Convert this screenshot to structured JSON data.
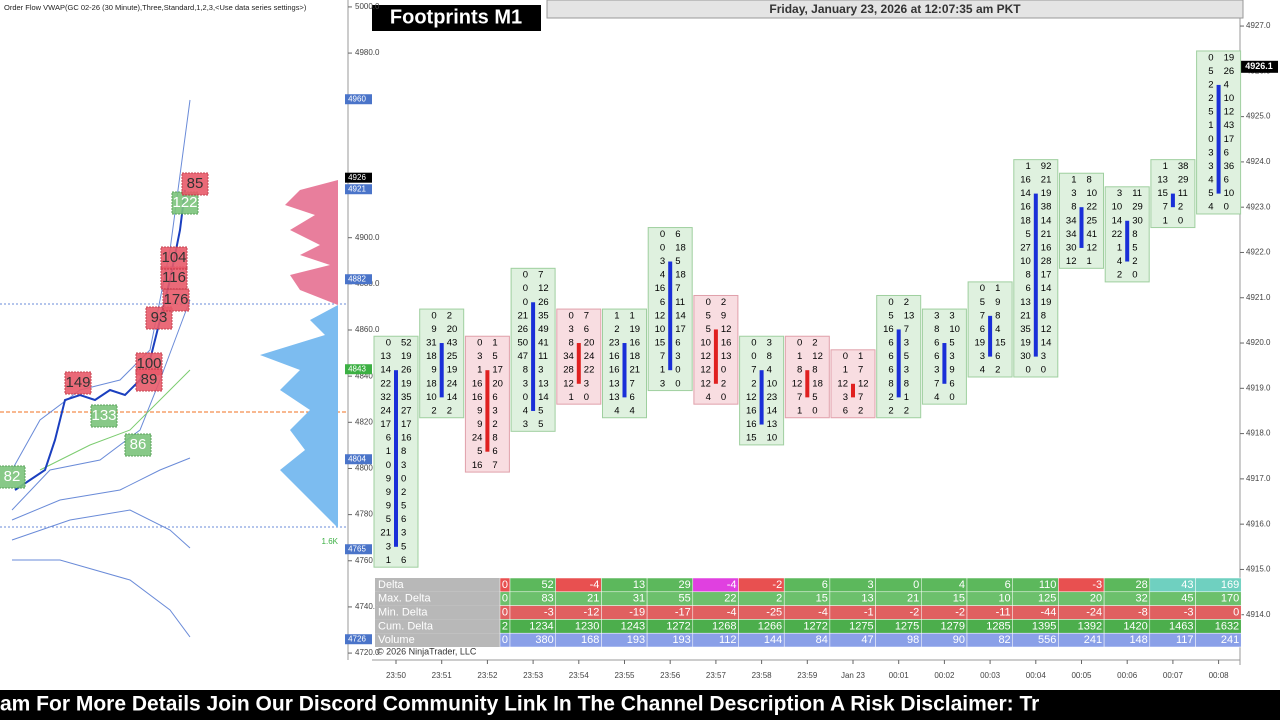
{
  "header": {
    "indicator": "Order Flow VWAP(GC 02-26 (30 Minute),Three,Standard,1,2,3,<Use data series settings>)",
    "title": "Footprints M1",
    "datetime": "Friday, January 23, 2026 at 12:07:35 am PKT",
    "copyright": "© 2026 NinjaTrader, LLC"
  },
  "left_chart": {
    "ylim": [
      4717,
      5003
    ],
    "yticks": [
      {
        "value": 5000,
        "label": "5000.0"
      },
      {
        "value": 4980,
        "label": "4980.0"
      },
      {
        "value": 4900,
        "label": "4900.0"
      },
      {
        "value": 4880,
        "label": "4880.0"
      },
      {
        "value": 4860,
        "label": "4860.0"
      },
      {
        "value": 4840,
        "label": "4840.0"
      },
      {
        "value": 4820,
        "label": "4820.0"
      },
      {
        "value": 4800,
        "label": "4800.0"
      },
      {
        "value": 4780,
        "label": "4780.0"
      },
      {
        "value": 4760,
        "label": "4760.0"
      },
      {
        "value": 4740,
        "label": "4740.0"
      },
      {
        "value": 4720,
        "label": "4720.0"
      }
    ],
    "price_tags": [
      {
        "value": 4960,
        "color": "#4a74c9"
      },
      {
        "value": 4926,
        "color": "#000000"
      },
      {
        "value": 4921,
        "color": "#4a74c9"
      },
      {
        "value": 4882,
        "color": "#4a74c9"
      },
      {
        "value": 4843,
        "color": "#3cb043"
      },
      {
        "value": 4804,
        "color": "#4a74c9"
      },
      {
        "value": 4765,
        "color": "#4a74c9"
      },
      {
        "value": 4726,
        "color": "#4a74c9"
      }
    ],
    "profile_label": "1.6K",
    "boxes": [
      {
        "label": "82",
        "color": "green"
      },
      {
        "label": "149",
        "color": "red"
      },
      {
        "label": "133",
        "color": "green"
      },
      {
        "label": "86",
        "color": "green"
      },
      {
        "label": "100",
        "color": "red"
      },
      {
        "label": "89",
        "color": "red"
      },
      {
        "label": "93",
        "color": "red"
      },
      {
        "label": "176",
        "color": "red"
      },
      {
        "label": "116",
        "color": "red"
      },
      {
        "label": "104",
        "color": "red"
      },
      {
        "label": "122",
        "color": "green"
      },
      {
        "label": "85",
        "color": "red"
      }
    ]
  },
  "right_chart": {
    "ylim": [
      4913,
      4927.2
    ],
    "yticks": [
      {
        "value": 4927,
        "label": "4927.0"
      },
      {
        "value": 4926,
        "label": "4926.0"
      },
      {
        "value": 4925,
        "label": "4925.0"
      },
      {
        "value": 4924,
        "label": "4924.0"
      },
      {
        "value": 4923,
        "label": "4923.0"
      },
      {
        "value": 4922,
        "label": "4922.0"
      },
      {
        "value": 4921,
        "label": "4921.0"
      },
      {
        "value": 4920,
        "label": "4920.0"
      },
      {
        "value": 4919,
        "label": "4919.0"
      },
      {
        "value": 4918,
        "label": "4918.0"
      },
      {
        "value": 4917,
        "label": "4917.0"
      },
      {
        "value": 4916,
        "label": "4916.0"
      },
      {
        "value": 4915,
        "label": "4915.0"
      },
      {
        "value": 4914,
        "label": "4914.0"
      }
    ],
    "last_price": {
      "value": 4926.1,
      "label": "4926.1"
    },
    "row_size": 0.3,
    "times": [
      "23:50",
      "23:51",
      "23:52",
      "23:53",
      "23:54",
      "23:55",
      "23:56",
      "23:57",
      "23:58",
      "23:59",
      "Jan 23",
      "00:01",
      "00:02",
      "00:03",
      "00:04",
      "00:05",
      "00:06",
      "00:07",
      "00:08"
    ],
    "columns": [
      {
        "top_price": 4920.0,
        "color": "blue",
        "rows": [
          [
            0,
            52
          ],
          [
            13,
            19
          ],
          [
            14,
            26
          ],
          [
            22,
            19
          ],
          [
            32,
            35
          ],
          [
            24,
            27
          ],
          [
            17,
            17
          ],
          [
            6,
            16
          ],
          [
            1,
            8
          ],
          [
            0,
            3
          ],
          [
            9,
            0
          ],
          [
            9,
            2
          ],
          [
            9,
            5
          ],
          [
            5,
            6
          ],
          [
            21,
            3
          ],
          [
            3,
            5
          ],
          [
            1,
            6
          ]
        ]
      },
      {
        "top_price": 4920.6,
        "color": "blue",
        "rows": [
          [
            0,
            2
          ],
          [
            9,
            20
          ],
          [
            31,
            43
          ],
          [
            18,
            25
          ],
          [
            9,
            19
          ],
          [
            18,
            24
          ],
          [
            10,
            14
          ],
          [
            2,
            2
          ]
        ]
      },
      {
        "top_price": 4920.0,
        "color": "red",
        "rows": [
          [
            0,
            1
          ],
          [
            3,
            5
          ],
          [
            1,
            17
          ],
          [
            16,
            20
          ],
          [
            16,
            6
          ],
          [
            9,
            3
          ],
          [
            9,
            2
          ],
          [
            24,
            8
          ],
          [
            5,
            6
          ],
          [
            16,
            7
          ]
        ]
      },
      {
        "top_price": 4921.5,
        "color": "blue",
        "rows": [
          [
            0,
            7
          ],
          [
            0,
            12
          ],
          [
            0,
            26
          ],
          [
            21,
            35
          ],
          [
            26,
            49
          ],
          [
            50,
            41
          ],
          [
            47,
            11
          ],
          [
            8,
            3
          ],
          [
            3,
            13
          ],
          [
            0,
            14
          ],
          [
            4,
            5
          ],
          [
            3,
            5
          ]
        ]
      },
      {
        "top_price": 4920.6,
        "color": "red",
        "rows": [
          [
            0,
            7
          ],
          [
            3,
            6
          ],
          [
            8,
            20
          ],
          [
            34,
            24
          ],
          [
            28,
            22
          ],
          [
            12,
            3
          ],
          [
            1,
            0
          ]
        ]
      },
      {
        "top_price": 4920.6,
        "color": "blue",
        "rows": [
          [
            1,
            1
          ],
          [
            2,
            19
          ],
          [
            23,
            16
          ],
          [
            16,
            18
          ],
          [
            16,
            21
          ],
          [
            13,
            7
          ],
          [
            13,
            6
          ],
          [
            4,
            4
          ]
        ]
      },
      {
        "top_price": 4922.4,
        "color": "blue",
        "rows": [
          [
            0,
            6
          ],
          [
            0,
            18
          ],
          [
            3,
            5
          ],
          [
            4,
            18
          ],
          [
            16,
            7
          ],
          [
            6,
            11
          ],
          [
            12,
            14
          ],
          [
            10,
            17
          ],
          [
            15,
            6
          ],
          [
            7,
            3
          ],
          [
            1,
            0
          ],
          [
            3,
            0
          ]
        ]
      },
      {
        "top_price": 4920.9,
        "color": "red",
        "rows": [
          [
            0,
            2
          ],
          [
            5,
            9
          ],
          [
            5,
            12
          ],
          [
            10,
            16
          ],
          [
            12,
            13
          ],
          [
            12,
            0
          ],
          [
            12,
            2
          ],
          [
            4,
            0
          ]
        ]
      },
      {
        "top_price": 4920.0,
        "color": "blue",
        "rows": [
          [
            0,
            3
          ],
          [
            0,
            8
          ],
          [
            7,
            4
          ],
          [
            2,
            10
          ],
          [
            12,
            23
          ],
          [
            16,
            14
          ],
          [
            16,
            13
          ],
          [
            15,
            10
          ]
        ]
      },
      {
        "top_price": 4920.0,
        "color": "red",
        "rows": [
          [
            0,
            2
          ],
          [
            1,
            12
          ],
          [
            8,
            8
          ],
          [
            12,
            18
          ],
          [
            7,
            5
          ],
          [
            1,
            0
          ]
        ]
      },
      {
        "top_price": 4919.7,
        "color": "red",
        "rows": [
          [
            0,
            1
          ],
          [
            1,
            7
          ],
          [
            12,
            12
          ],
          [
            3,
            7
          ],
          [
            6,
            2
          ]
        ]
      },
      {
        "top_price": 4920.9,
        "color": "blue",
        "rows": [
          [
            0,
            2
          ],
          [
            5,
            13
          ],
          [
            16,
            7
          ],
          [
            6,
            3
          ],
          [
            6,
            5
          ],
          [
            6,
            3
          ],
          [
            8,
            8
          ],
          [
            2,
            1
          ],
          [
            2,
            2
          ]
        ]
      },
      {
        "top_price": 4920.6,
        "color": "blue",
        "rows": [
          [
            3,
            3
          ],
          [
            8,
            10
          ],
          [
            6,
            5
          ],
          [
            6,
            3
          ],
          [
            3,
            9
          ],
          [
            7,
            6
          ],
          [
            4,
            0
          ]
        ]
      },
      {
        "top_price": 4921.2,
        "color": "blue",
        "rows": [
          [
            0,
            1
          ],
          [
            5,
            9
          ],
          [
            7,
            8
          ],
          [
            6,
            4
          ],
          [
            19,
            15
          ],
          [
            3,
            6
          ],
          [
            4,
            2
          ]
        ]
      },
      {
        "top_price": 4923.9,
        "color": "blue",
        "rows": [
          [
            1,
            92
          ],
          [
            16,
            21
          ],
          [
            14,
            19
          ],
          [
            16,
            38
          ],
          [
            18,
            14
          ],
          [
            5,
            21
          ],
          [
            27,
            16
          ],
          [
            10,
            28
          ],
          [
            8,
            17
          ],
          [
            6,
            14
          ],
          [
            13,
            19
          ],
          [
            21,
            8
          ],
          [
            35,
            12
          ],
          [
            19,
            14
          ],
          [
            30,
            3
          ],
          [
            0,
            0
          ]
        ]
      },
      {
        "top_price": 4923.6,
        "color": "blue",
        "rows": [
          [
            1,
            8
          ],
          [
            3,
            10
          ],
          [
            8,
            22
          ],
          [
            34,
            25
          ],
          [
            34,
            41
          ],
          [
            30,
            12
          ],
          [
            12,
            1
          ]
        ]
      },
      {
        "top_price": 4923.3,
        "color": "blue",
        "rows": [
          [
            3,
            11
          ],
          [
            10,
            29
          ],
          [
            14,
            30
          ],
          [
            22,
            8
          ],
          [
            1,
            5
          ],
          [
            4,
            2
          ],
          [
            2,
            0
          ]
        ]
      },
      {
        "top_price": 4923.9,
        "color": "blue",
        "rows": [
          [
            1,
            38
          ],
          [
            13,
            29
          ],
          [
            15,
            11
          ],
          [
            7,
            2
          ],
          [
            1,
            0
          ]
        ]
      },
      {
        "top_price": 4926.3,
        "color": "blue",
        "rows": [
          [
            0,
            19
          ],
          [
            5,
            26
          ],
          [
            2,
            4
          ],
          [
            2,
            10
          ],
          [
            5,
            12
          ],
          [
            1,
            43
          ],
          [
            0,
            17
          ],
          [
            3,
            6
          ],
          [
            3,
            36
          ],
          [
            4,
            6
          ],
          [
            5,
            10
          ],
          [
            4,
            0
          ]
        ]
      }
    ]
  },
  "stats": {
    "rows": [
      {
        "label": "Delta",
        "color": "#5cb85c",
        "values": [
          0,
          52,
          -4,
          13,
          29,
          -4,
          -2,
          6,
          3,
          0,
          4,
          6,
          110,
          -3,
          28,
          43,
          169
        ],
        "colors": [
          "#e85050",
          "#5cb85c",
          "#e85050",
          "#5cb85c",
          "#5cb85c",
          "#e040e0",
          "#e85050",
          "#5cb85c",
          "#5cb85c",
          "#5cb85c",
          "#5cb85c",
          "#5cb85c",
          "#5cb85c",
          "#e85050",
          "#5cb85c",
          "#6fd0c0",
          "#6fd0c0"
        ]
      },
      {
        "label": "Max. Delta",
        "color": "#6cc06c",
        "values": [
          0,
          83,
          21,
          31,
          55,
          22,
          2,
          15,
          13,
          21,
          15,
          10,
          125,
          20,
          32,
          45,
          170
        ]
      },
      {
        "label": "Min. Delta",
        "color": "#e06060",
        "values": [
          0,
          -3,
          -12,
          -19,
          -17,
          -4,
          -25,
          -4,
          -1,
          -2,
          -2,
          -11,
          -44,
          -24,
          -8,
          -3,
          0
        ]
      },
      {
        "label": "Cum. Delta",
        "color": "#4cae4c",
        "values": [
          2,
          1234,
          1230,
          1243,
          1272,
          1268,
          1266,
          1272,
          1275,
          1275,
          1279,
          1285,
          1395,
          1392,
          1420,
          1463,
          1632
        ]
      },
      {
        "label": "Volume",
        "color": "#8aa0e8",
        "values": [
          0,
          380,
          168,
          193,
          193,
          112,
          144,
          84,
          47,
          98,
          90,
          82,
          556,
          241,
          148,
          117,
          241
        ]
      }
    ]
  },
  "ticker": "am For More Details Join Our Discord Community Link In The Channel Description A Risk Disclaimer: Tr"
}
